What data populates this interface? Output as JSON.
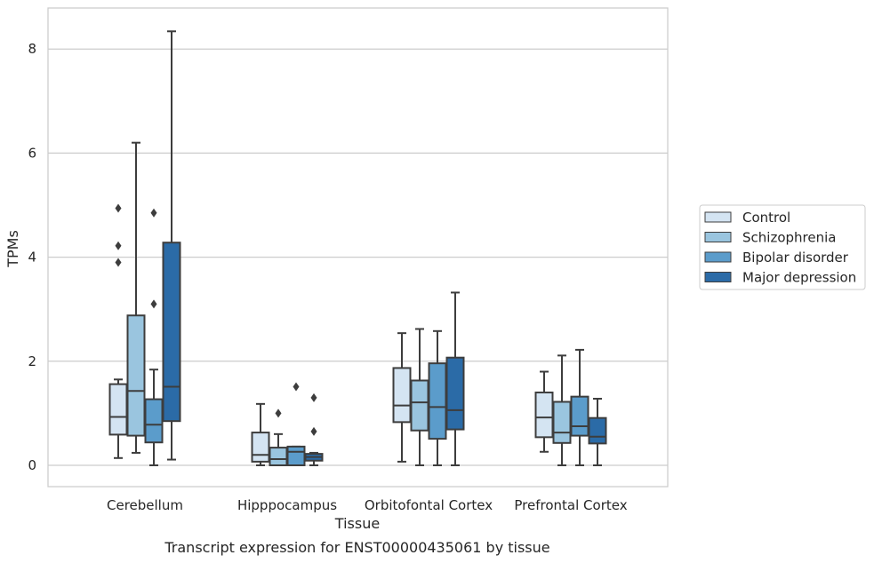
{
  "chart_data": {
    "type": "box",
    "title": "",
    "caption": "Transcript expression for ENST00000435061 by tissue",
    "xlabel": "Tissue",
    "ylabel": "TPMs",
    "ylim": [
      -0.4,
      8.8
    ],
    "yticks": [
      0,
      2,
      4,
      6,
      8
    ],
    "grid": "horizontal",
    "legend_position": "right",
    "categories": [
      "Cerebellum",
      "Hipppocampus",
      "Orbitofontal Cortex",
      "Prefrontal Cortex"
    ],
    "series": [
      {
        "name": "Control",
        "color": "#d4e4f2",
        "boxes": [
          {
            "whislo": 0.14,
            "q1": 0.59,
            "med": 0.93,
            "q3": 1.56,
            "whishi": 1.65,
            "fliers": [
              3.9,
              4.22,
              4.94
            ]
          },
          {
            "whislo": 0.0,
            "q1": 0.07,
            "med": 0.2,
            "q3": 0.63,
            "whishi": 1.18,
            "fliers": []
          },
          {
            "whislo": 0.07,
            "q1": 0.83,
            "med": 1.15,
            "q3": 1.87,
            "whishi": 2.54,
            "fliers": []
          },
          {
            "whislo": 0.26,
            "q1": 0.54,
            "med": 0.92,
            "q3": 1.4,
            "whishi": 1.8,
            "fliers": []
          }
        ]
      },
      {
        "name": "Schizophrenia",
        "color": "#9ac5df",
        "boxes": [
          {
            "whislo": 0.24,
            "q1": 0.57,
            "med": 1.43,
            "q3": 2.88,
            "whishi": 6.2,
            "fliers": []
          },
          {
            "whislo": 0.0,
            "q1": 0.0,
            "med": 0.12,
            "q3": 0.34,
            "whishi": 0.6,
            "fliers": [
              1.0
            ]
          },
          {
            "whislo": 0.0,
            "q1": 0.67,
            "med": 1.21,
            "q3": 1.63,
            "whishi": 2.62,
            "fliers": []
          },
          {
            "whislo": 0.0,
            "q1": 0.43,
            "med": 0.63,
            "q3": 1.22,
            "whishi": 2.11,
            "fliers": []
          }
        ]
      },
      {
        "name": "Bipolar disorder",
        "color": "#5b9ccb",
        "boxes": [
          {
            "whislo": 0.0,
            "q1": 0.44,
            "med": 0.78,
            "q3": 1.27,
            "whishi": 1.84,
            "fliers": [
              3.1,
              4.85
            ]
          },
          {
            "whislo": 0.0,
            "q1": 0.0,
            "med": 0.26,
            "q3": 0.36,
            "whishi": 0.36,
            "fliers": [
              1.51
            ]
          },
          {
            "whislo": 0.0,
            "q1": 0.51,
            "med": 1.12,
            "q3": 1.96,
            "whishi": 2.58,
            "fliers": []
          },
          {
            "whislo": 0.0,
            "q1": 0.57,
            "med": 0.75,
            "q3": 1.32,
            "whishi": 2.22,
            "fliers": []
          }
        ]
      },
      {
        "name": "Major depression",
        "color": "#2b6ba7",
        "boxes": [
          {
            "whislo": 0.11,
            "q1": 0.85,
            "med": 1.51,
            "q3": 4.28,
            "whishi": 8.34,
            "fliers": []
          },
          {
            "whislo": 0.0,
            "q1": 0.09,
            "med": 0.16,
            "q3": 0.22,
            "whishi": 0.24,
            "fliers": [
              0.65,
              1.3
            ]
          },
          {
            "whislo": 0.0,
            "q1": 0.69,
            "med": 1.06,
            "q3": 2.07,
            "whishi": 3.32,
            "fliers": []
          },
          {
            "whislo": 0.0,
            "q1": 0.42,
            "med": 0.55,
            "q3": 0.91,
            "whishi": 1.28,
            "fliers": []
          }
        ]
      }
    ]
  }
}
